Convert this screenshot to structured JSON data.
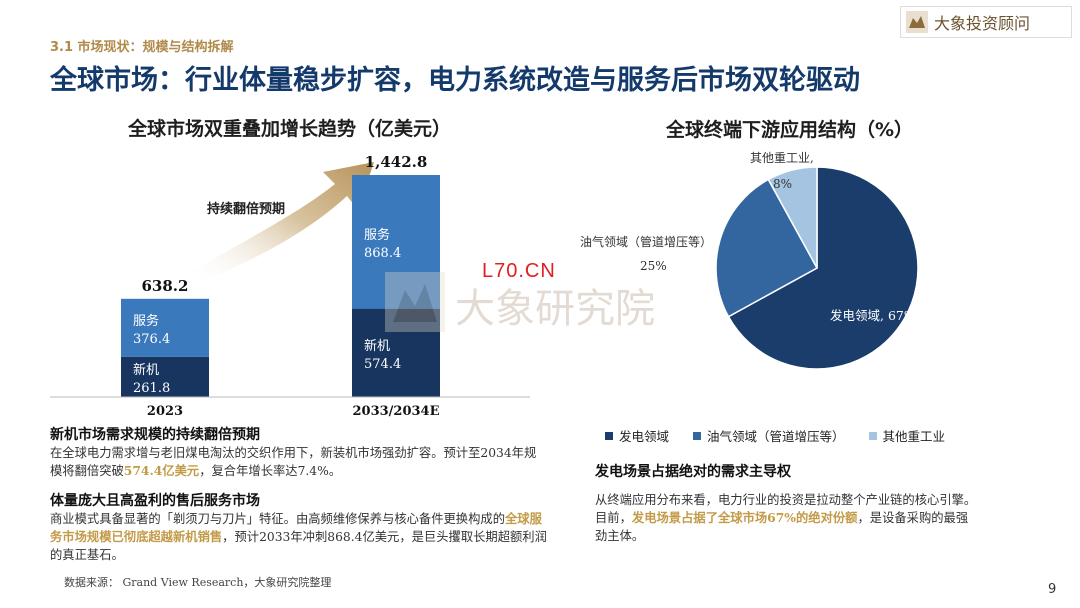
{
  "header": {
    "section": "3.1 市场现状：规模与结构拆解",
    "title": "全球市场：行业体量稳步扩容，电力系统改造与服务后市场双轮驱动",
    "brand": "大象投资顾问"
  },
  "colors": {
    "new": "#17355f",
    "service": "#3b79bd",
    "dark": "#1a3d6b",
    "mid": "#33669e",
    "light": "#a5c4e2",
    "gold": "#c39a47"
  },
  "bar_chart": {
    "title": "全球市场双重叠加增长趋势（亿美元）",
    "arrow_label": "持续翻倍预期"
  },
  "pie_chart": {
    "title": "全球终端下游应用结构（%）"
  },
  "chart_data": [
    {
      "type": "bar",
      "stacked": true,
      "title": "全球市场双重叠加增长趋势（亿美元）",
      "categories": [
        "2023",
        "2033/2034E"
      ],
      "totals_labels": [
        "638.2",
        "1,442.8"
      ],
      "series": [
        {
          "name": "新机",
          "values": [
            261.8,
            574.4
          ],
          "labels": [
            "261.8",
            "574.4"
          ]
        },
        {
          "name": "服务",
          "values": [
            376.4,
            868.4
          ],
          "labels": [
            "376.4",
            "868.4"
          ]
        }
      ],
      "ylim": [
        0,
        1442.8
      ]
    },
    {
      "type": "pie",
      "title": "全球终端下游应用结构（%）",
      "slices": [
        {
          "name": "发电领域",
          "value": 67,
          "label": "发电领域, 67%"
        },
        {
          "name": "油气领域（管道增压等）",
          "value": 25,
          "label_name": "油气领域（管道增压等）",
          "label_value": "25%"
        },
        {
          "name": "其他重工业",
          "value": 8,
          "label_name": "其他重工业,",
          "label_value": "8%"
        }
      ],
      "legend_position": "bottom",
      "legend": [
        "发电领域",
        "油气领域（管道增压等）",
        "其他重工业"
      ]
    }
  ],
  "left_text": {
    "h_new": "新机市场需求规模的持续翻倍预期",
    "p_new_1": "在全球电力需求增与老旧煤电淘汰的交织作用下，新装机市场强劲扩容。预计至2034年规模将翻倍突破",
    "p_new_hl": "574.4亿美元",
    "p_new_2": "，复合年增长率达7.4%。",
    "h_service": "体量庞大且高盈利的售后服务市场",
    "p_service_1": "商业模式具备显著的「剃须刀与刀片」特征。由高频维修保养与核心备件更换构成的",
    "p_service_hl": "全球服务市场规模已彻底超越新机销售",
    "p_service_2": "，预计2033年冲刺868.4亿美元，是巨头攫取长期超额利润的真正基石。",
    "source": "数据来源： Grand View Research，大象研究院整理"
  },
  "right_text": {
    "h_dominant": "发电场景占据绝对的需求主导权",
    "p_1": "从终端应用分布来看，电力行业的投资是拉动整个产业链的核心引擎。目前，",
    "p_hl": "发电场景占据了全球市场67%的绝对份额",
    "p_2": "，是设备采购的最强劲主体。"
  },
  "watermark": {
    "text": "大象研究院",
    "stamp": "L70.CN"
  },
  "page_number": "9"
}
